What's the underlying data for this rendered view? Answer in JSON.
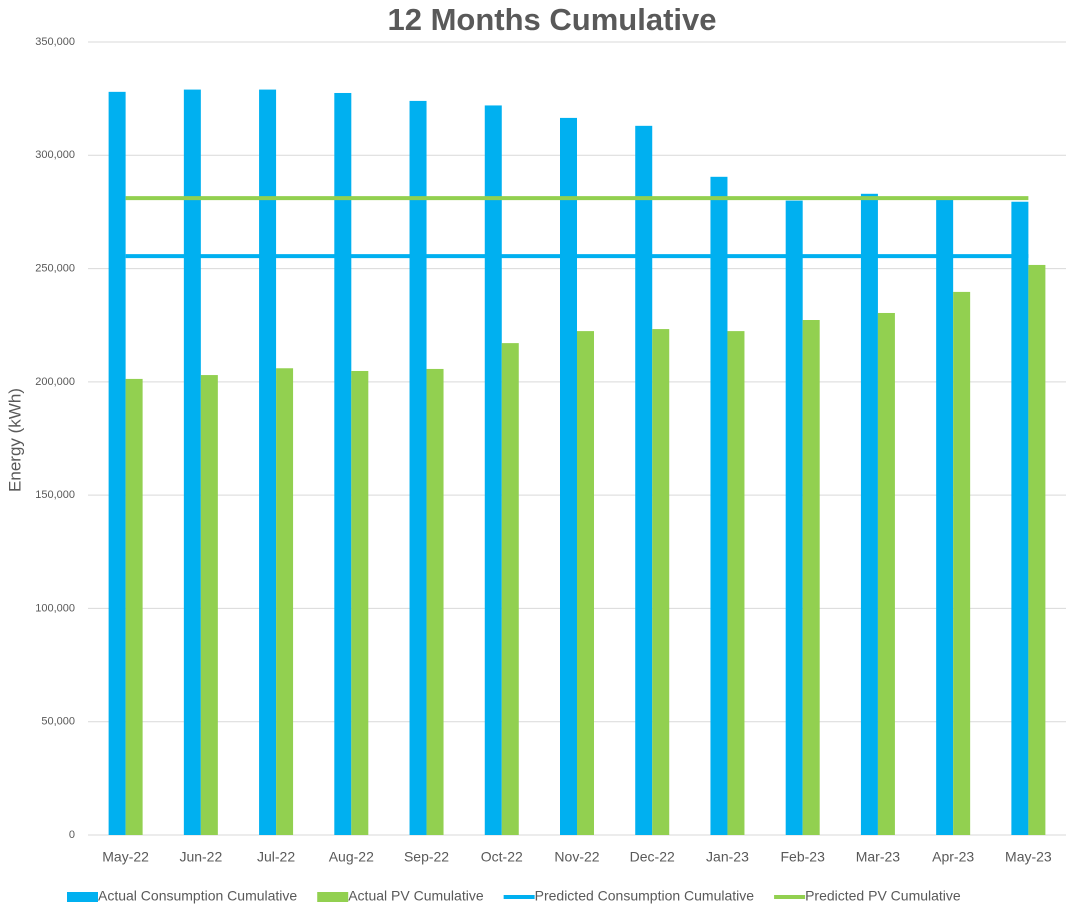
{
  "chart_data": {
    "type": "bar-line",
    "title": "12 Months Cumulative",
    "y_label": "Energy (kWh)",
    "categories": [
      "May-22",
      "Jun-22",
      "Jul-22",
      "Aug-22",
      "Sep-22",
      "Oct-22",
      "Nov-22",
      "Dec-22",
      "Jan-23",
      "Feb-23",
      "Mar-23",
      "Apr-23",
      "May-23"
    ],
    "series": [
      {
        "name": "Actual Consumption Cumulative",
        "kind": "bar",
        "color": "#00b0f0",
        "values": [
          328000,
          329000,
          329000,
          327500,
          324000,
          322000,
          316500,
          313000,
          290500,
          280000,
          283000,
          280500,
          279500
        ]
      },
      {
        "name": "Actual PV Cumulative",
        "kind": "bar",
        "color": "#92d050",
        "values": [
          201300,
          203000,
          206000,
          204800,
          205700,
          217100,
          222400,
          223300,
          222400,
          227300,
          230400,
          239700,
          251600
        ]
      },
      {
        "name": "Predicted Consumption Cumulative",
        "kind": "line",
        "color": "#00b0f0",
        "values": [
          255500,
          255500,
          255500,
          255500,
          255500,
          255500,
          255500,
          255500,
          255500,
          255500,
          255500,
          255500,
          255500
        ]
      },
      {
        "name": "Predicted PV Cumulative",
        "kind": "line",
        "color": "#92d050",
        "values": [
          281100,
          281100,
          281100,
          281100,
          281100,
          281100,
          281100,
          281100,
          281100,
          281100,
          281100,
          281100,
          281100
        ]
      }
    ],
    "ylim": [
      0,
      350000
    ],
    "yticks": [
      0,
      {
        "value": 50000,
        "label": "50,000"
      },
      {
        "value": 100000,
        "label": "100,000"
      },
      {
        "value": 150000,
        "label": "150,000"
      },
      {
        "value": 200000,
        "label": "200,000"
      },
      {
        "value": 250000,
        "label": "250,000"
      },
      {
        "value": 300000,
        "label": "300,000"
      },
      {
        "value": 350000,
        "label": "350,000"
      }
    ],
    "grid": true,
    "legend": "bottom"
  }
}
